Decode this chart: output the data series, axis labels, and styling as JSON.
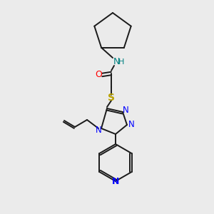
{
  "background_color": "#ebebeb",
  "atom_colors": {
    "C": "#000000",
    "N": "#0000ff",
    "O": "#ff0000",
    "S": "#b8a000",
    "NH": "#008080"
  },
  "figsize": [
    3.0,
    3.0
  ],
  "dpi": 100
}
